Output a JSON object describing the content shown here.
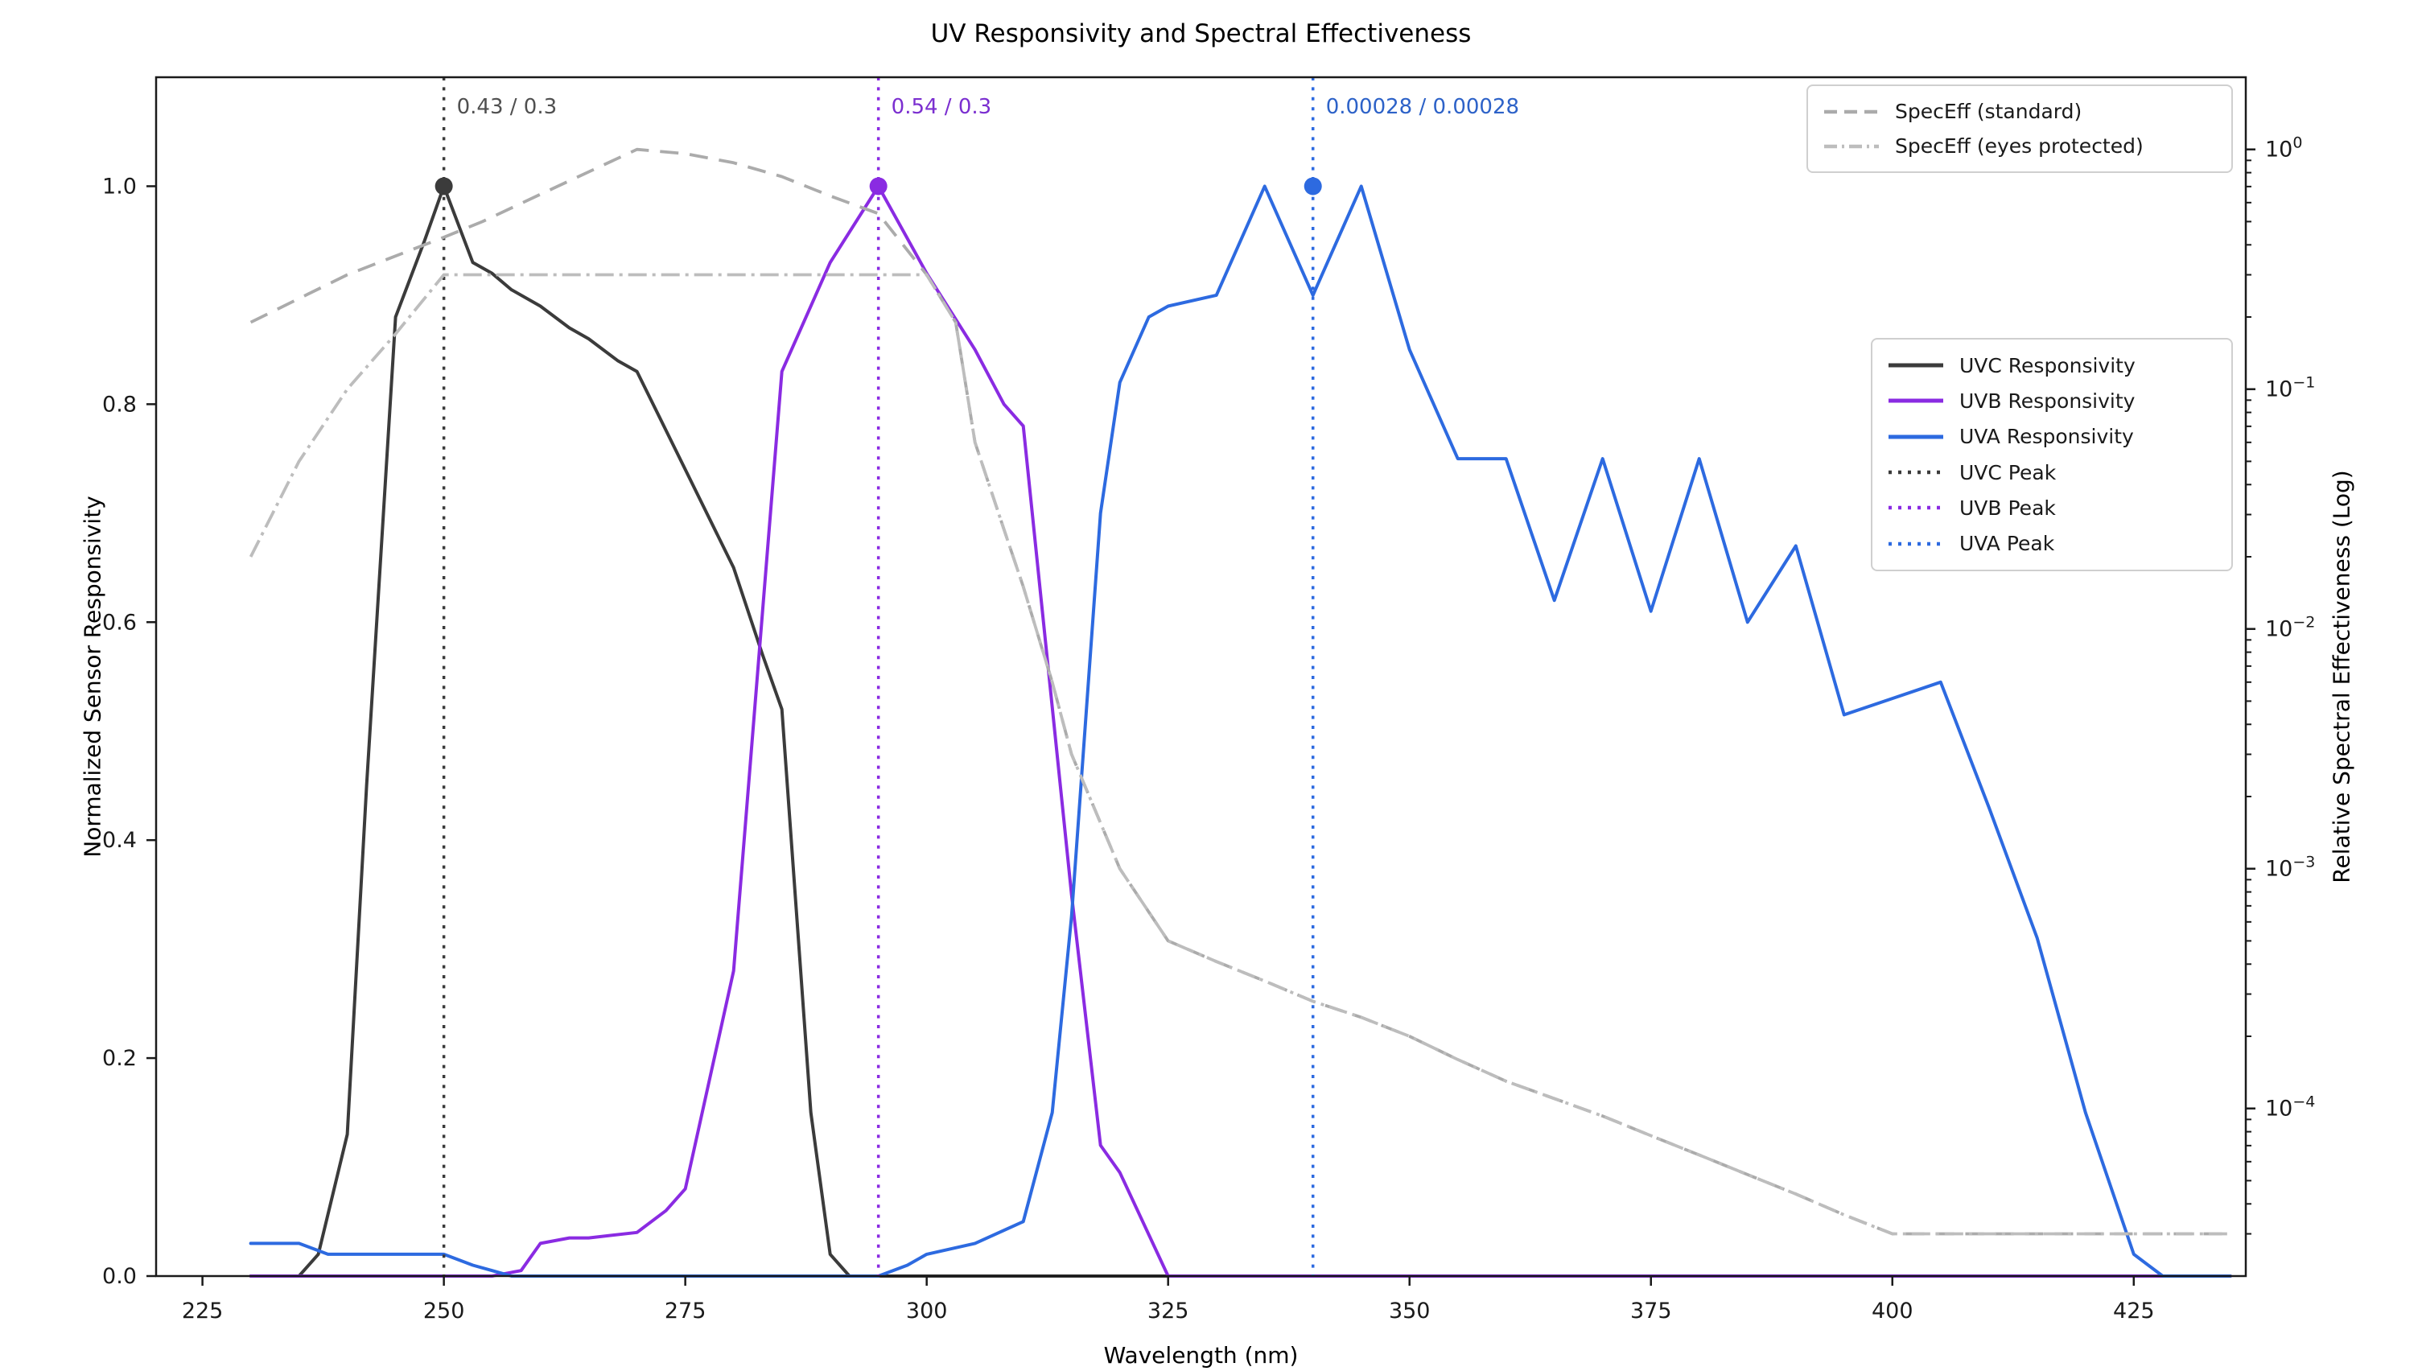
{
  "title": "UV Responsivity and Spectral Effectiveness",
  "axes": {
    "x": {
      "label": "Wavelength (nm)",
      "min": 220.2,
      "max": 436.6,
      "ticks": [
        225,
        250,
        275,
        300,
        325,
        350,
        375,
        400,
        425
      ]
    },
    "y_left": {
      "label": "Normalized Sensor Responsivity",
      "min": 0,
      "max": 1.1,
      "ticks": [
        "0.0",
        "0.2",
        "0.4",
        "0.6",
        "0.8",
        "1.0"
      ]
    },
    "y_right": {
      "label": "Relative Spectral Effectiveness (Log)",
      "min": 2e-05,
      "max": 2,
      "scale": "log",
      "tick_exponents": [
        0,
        -1,
        -2,
        -3,
        -4
      ]
    }
  },
  "legend_speceff": {
    "items": [
      {
        "label": "SpecEff (standard)",
        "style": "dashed",
        "color": "#ABABAB"
      },
      {
        "label": "SpecEff (eyes protected)",
        "style": "dashdot",
        "color": "#BDBDBD"
      }
    ]
  },
  "legend_main": {
    "items": [
      {
        "label": "UVC Responsivity",
        "style": "solid",
        "color": "#3B3B3B"
      },
      {
        "label": "UVB Responsivity",
        "style": "solid",
        "color": "#8A2BE2"
      },
      {
        "label": "UVA Responsivity",
        "style": "solid",
        "color": "#2D6AE0"
      },
      {
        "label": "UVC Peak",
        "style": "dotted",
        "color": "#3B3B3B"
      },
      {
        "label": "UVB Peak",
        "style": "dotted",
        "color": "#8A2BE2"
      },
      {
        "label": "UVA Peak",
        "style": "dotted",
        "color": "#2D6AE0"
      }
    ]
  },
  "annotations": [
    {
      "x_nm": 250,
      "text": "0.43 / 0.3",
      "color": "#505050"
    },
    {
      "x_nm": 295,
      "text": "0.54 / 0.3",
      "color": "#7B2FD0"
    },
    {
      "x_nm": 340,
      "text": "0.00028 / 0.00028",
      "color": "#2D62C8"
    }
  ],
  "chart_data": {
    "type": "line",
    "title": "UV Responsivity and Spectral Effectiveness",
    "xlabel": "Wavelength (nm)",
    "ylabel_left": "Normalized Sensor Responsivity",
    "ylabel_right": "Relative Spectral Effectiveness (Log)",
    "xlim": [
      220.2,
      436.6
    ],
    "ylim_left": [
      0,
      1.1
    ],
    "ylim_right_log": [
      2e-05,
      2
    ],
    "grid": false,
    "peak_vlines": [
      {
        "x": 250,
        "color": "#3B3B3B",
        "label": "UVC Peak"
      },
      {
        "x": 295,
        "color": "#8A2BE2",
        "label": "UVB Peak"
      },
      {
        "x": 340,
        "color": "#2D6AE0",
        "label": "UVA Peak"
      }
    ],
    "peak_markers": [
      {
        "x": 250,
        "y": 1.0,
        "color": "#3B3B3B"
      },
      {
        "x": 295,
        "y": 1.0,
        "color": "#8A2BE2"
      },
      {
        "x": 340,
        "y": 1.0,
        "color": "#2D6AE0"
      }
    ],
    "series": [
      {
        "name": "uvc-responsivity",
        "label": "UVC Responsivity",
        "axis": "left",
        "style": "solid",
        "color": "#3B3B3B",
        "points": [
          [
            230,
            0
          ],
          [
            235,
            0
          ],
          [
            237,
            0.02
          ],
          [
            240,
            0.13
          ],
          [
            242,
            0.45
          ],
          [
            245,
            0.88
          ],
          [
            248,
            0.95
          ],
          [
            250,
            1.0
          ],
          [
            253,
            0.93
          ],
          [
            255,
            0.92
          ],
          [
            257,
            0.905
          ],
          [
            260,
            0.89
          ],
          [
            263,
            0.87
          ],
          [
            265,
            0.86
          ],
          [
            268,
            0.84
          ],
          [
            270,
            0.83
          ],
          [
            275,
            0.74
          ],
          [
            280,
            0.65
          ],
          [
            283,
            0.57
          ],
          [
            285,
            0.52
          ],
          [
            288,
            0.15
          ],
          [
            290,
            0.02
          ],
          [
            292,
            0
          ],
          [
            300,
            0
          ],
          [
            325,
            0
          ],
          [
            350,
            0
          ],
          [
            375,
            0
          ],
          [
            400,
            0
          ],
          [
            435,
            0
          ]
        ]
      },
      {
        "name": "uvb-responsivity",
        "label": "UVB Responsivity",
        "axis": "left",
        "style": "solid",
        "color": "#8A2BE2",
        "points": [
          [
            230,
            0
          ],
          [
            240,
            0
          ],
          [
            250,
            0
          ],
          [
            255,
            0
          ],
          [
            258,
            0.005
          ],
          [
            260,
            0.03
          ],
          [
            263,
            0.035
          ],
          [
            265,
            0.035
          ],
          [
            270,
            0.04
          ],
          [
            273,
            0.06
          ],
          [
            275,
            0.08
          ],
          [
            280,
            0.28
          ],
          [
            285,
            0.83
          ],
          [
            290,
            0.93
          ],
          [
            295,
            1.0
          ],
          [
            300,
            0.92
          ],
          [
            305,
            0.85
          ],
          [
            308,
            0.8
          ],
          [
            310,
            0.78
          ],
          [
            315,
            0.35
          ],
          [
            318,
            0.12
          ],
          [
            320,
            0.095
          ],
          [
            325,
            0
          ],
          [
            350,
            0
          ],
          [
            375,
            0
          ],
          [
            400,
            0
          ],
          [
            435,
            0
          ]
        ]
      },
      {
        "name": "uva-responsivity",
        "label": "UVA Responsivity",
        "axis": "left",
        "style": "solid",
        "color": "#2D6AE0",
        "points": [
          [
            230,
            0.03
          ],
          [
            235,
            0.03
          ],
          [
            238,
            0.02
          ],
          [
            245,
            0.02
          ],
          [
            250,
            0.02
          ],
          [
            253,
            0.01
          ],
          [
            255,
            0.005
          ],
          [
            257,
            0
          ],
          [
            265,
            0
          ],
          [
            275,
            0
          ],
          [
            285,
            0
          ],
          [
            295,
            0
          ],
          [
            298,
            0.01
          ],
          [
            300,
            0.02
          ],
          [
            305,
            0.03
          ],
          [
            310,
            0.05
          ],
          [
            313,
            0.15
          ],
          [
            315,
            0.33
          ],
          [
            318,
            0.7
          ],
          [
            320,
            0.82
          ],
          [
            323,
            0.88
          ],
          [
            325,
            0.89
          ],
          [
            330,
            0.9
          ],
          [
            335,
            1.0
          ],
          [
            340,
            0.9
          ],
          [
            345,
            1.0
          ],
          [
            350,
            0.85
          ],
          [
            355,
            0.75
          ],
          [
            360,
            0.75
          ],
          [
            365,
            0.62
          ],
          [
            370,
            0.75
          ],
          [
            375,
            0.61
          ],
          [
            380,
            0.75
          ],
          [
            385,
            0.6
          ],
          [
            390,
            0.67
          ],
          [
            395,
            0.515
          ],
          [
            400,
            0.53
          ],
          [
            405,
            0.545
          ],
          [
            410,
            0.43
          ],
          [
            415,
            0.31
          ],
          [
            420,
            0.15
          ],
          [
            425,
            0.02
          ],
          [
            428,
            0
          ],
          [
            435,
            0
          ]
        ]
      },
      {
        "name": "speceff-standard",
        "label": "SpecEff (standard)",
        "axis": "right",
        "style": "dashed",
        "color": "#ABABAB",
        "points": [
          [
            230,
            0.19
          ],
          [
            240,
            0.3
          ],
          [
            250,
            0.43
          ],
          [
            254,
            0.5
          ],
          [
            260,
            0.65
          ],
          [
            270,
            1.0
          ],
          [
            275,
            0.96
          ],
          [
            280,
            0.88
          ],
          [
            285,
            0.77
          ],
          [
            290,
            0.64
          ],
          [
            295,
            0.54
          ],
          [
            300,
            0.3
          ],
          [
            303,
            0.19
          ],
          [
            305,
            0.06
          ],
          [
            308,
            0.026
          ],
          [
            310,
            0.015
          ],
          [
            313,
            0.006
          ],
          [
            315,
            0.003
          ],
          [
            320,
            0.001
          ],
          [
            325,
            0.0005
          ],
          [
            330,
            0.00041
          ],
          [
            335,
            0.00034
          ],
          [
            340,
            0.00028
          ],
          [
            345,
            0.00024
          ],
          [
            350,
            0.0002
          ],
          [
            355,
            0.00016
          ],
          [
            360,
            0.00013
          ],
          [
            365,
            0.00011
          ],
          [
            370,
            9.3e-05
          ],
          [
            375,
            7.7e-05
          ],
          [
            380,
            6.4e-05
          ],
          [
            385,
            5.3e-05
          ],
          [
            390,
            4.4e-05
          ],
          [
            395,
            3.6e-05
          ],
          [
            400,
            3e-05
          ],
          [
            435,
            3e-05
          ]
        ]
      },
      {
        "name": "speceff-eyes-protected",
        "label": "SpecEff (eyes protected)",
        "axis": "right",
        "style": "dashdot",
        "color": "#BDBDBD",
        "points": [
          [
            230,
            0.02
          ],
          [
            235,
            0.05
          ],
          [
            240,
            0.1
          ],
          [
            245,
            0.17
          ],
          [
            250,
            0.3
          ],
          [
            260,
            0.3
          ],
          [
            270,
            0.3
          ],
          [
            280,
            0.3
          ],
          [
            290,
            0.3
          ],
          [
            295,
            0.3
          ],
          [
            300,
            0.3
          ],
          [
            303,
            0.19
          ],
          [
            305,
            0.06
          ],
          [
            308,
            0.026
          ],
          [
            310,
            0.015
          ],
          [
            313,
            0.006
          ],
          [
            315,
            0.003
          ],
          [
            320,
            0.001
          ],
          [
            325,
            0.0005
          ],
          [
            330,
            0.00041
          ],
          [
            335,
            0.00034
          ],
          [
            340,
            0.00028
          ],
          [
            345,
            0.00024
          ],
          [
            350,
            0.0002
          ],
          [
            355,
            0.00016
          ],
          [
            360,
            0.00013
          ],
          [
            365,
            0.00011
          ],
          [
            370,
            9.3e-05
          ],
          [
            375,
            7.7e-05
          ],
          [
            380,
            6.4e-05
          ],
          [
            385,
            5.3e-05
          ],
          [
            390,
            4.4e-05
          ],
          [
            395,
            3.6e-05
          ],
          [
            400,
            3e-05
          ],
          [
            435,
            3e-05
          ]
        ]
      }
    ],
    "annotations": [
      {
        "x_nm": 250,
        "text": "0.43 / 0.3"
      },
      {
        "x_nm": 295,
        "text": "0.54 / 0.3"
      },
      {
        "x_nm": 340,
        "text": "0.00028 / 0.00028"
      }
    ]
  }
}
